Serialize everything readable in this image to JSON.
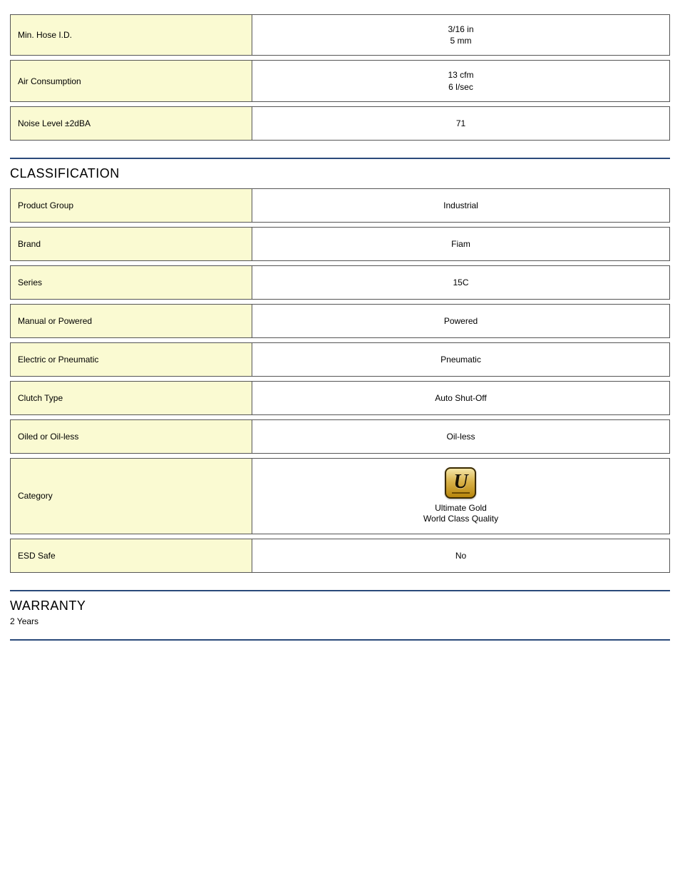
{
  "specs_top": [
    {
      "label": "Min. Hose I.D.",
      "value_lines": [
        "3/16 in",
        "5 mm"
      ]
    },
    {
      "label": "Air Consumption",
      "value_lines": [
        "13 cfm",
        "6 l/sec"
      ]
    },
    {
      "label": "Noise Level ±2dBA",
      "value_lines": [
        "71"
      ]
    }
  ],
  "classification": {
    "heading": "CLASSIFICATION",
    "rows": [
      {
        "label": "Product Group",
        "value": "Industrial"
      },
      {
        "label": "Brand",
        "value": "Fiam"
      },
      {
        "label": "Series",
        "value": "15C"
      },
      {
        "label": "Manual or Powered",
        "value": "Powered"
      },
      {
        "label": "Electric or Pneumatic",
        "value": "Pneumatic"
      },
      {
        "label": "Clutch Type",
        "value": "Auto Shut-Off"
      },
      {
        "label": "Oiled or Oil-less",
        "value": "Oil-less"
      }
    ],
    "category": {
      "label": "Category",
      "badge_letter": "U",
      "caption_lines": [
        "Ultimate Gold",
        "World Class Quality"
      ]
    },
    "esd": {
      "label": "ESD Safe",
      "value": "No"
    }
  },
  "warranty": {
    "heading": "WARRANTY",
    "text": "2 Years"
  },
  "colors": {
    "label_bg": "#fafad2",
    "rule": "#2a4a7a",
    "border": "#555555"
  }
}
